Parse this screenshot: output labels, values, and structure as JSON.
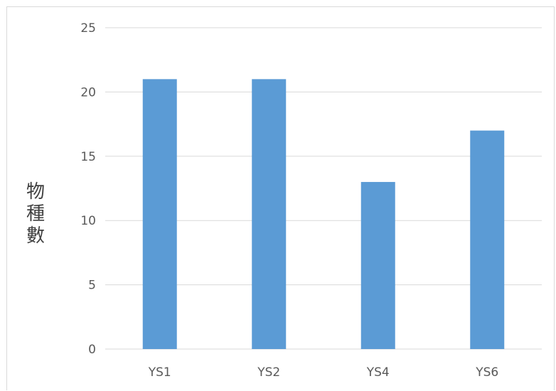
{
  "chart_data": {
    "type": "bar",
    "title": "",
    "xlabel": "",
    "ylabel": "物種數",
    "categories": [
      "YS1",
      "YS2",
      "YS4",
      "YS6"
    ],
    "values": [
      21,
      21,
      13,
      17
    ],
    "ylim": [
      0,
      25
    ],
    "yticks": [
      0,
      5,
      10,
      15,
      20,
      25
    ],
    "grid": true,
    "legend": "none",
    "bar_color": "#5b9bd5",
    "grid_color": "#d9d9d9",
    "tick_color": "#595959"
  }
}
